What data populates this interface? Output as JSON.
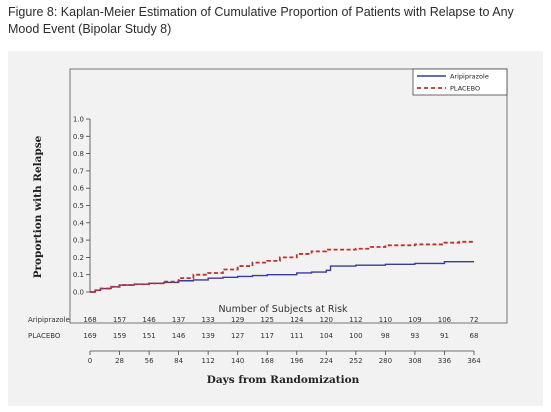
{
  "figure": {
    "title": "Figure 8: Kaplan-Meier Estimation of Cumulative Proportion of Patients with Relapse to Any Mood Event (Bipolar Study 8)"
  },
  "chart_data": {
    "type": "line",
    "title": "",
    "xlabel": "Days from Randomization",
    "ylabel": "Proportion with Relapse",
    "xlim": [
      0,
      364
    ],
    "ylim": [
      0,
      1.0
    ],
    "x_ticks": [
      0,
      28,
      56,
      84,
      112,
      140,
      168,
      196,
      224,
      252,
      280,
      308,
      336,
      364
    ],
    "y_ticks": [
      "0.0",
      "0.1",
      "0.2",
      "0.3",
      "0.4",
      "0.5",
      "0.6",
      "0.7",
      "0.8",
      "0.9",
      "1.0"
    ],
    "legend_position": "top-right",
    "series": [
      {
        "name": "Aripiprazole",
        "color": "#3b3b9a",
        "style": "solid",
        "points": [
          [
            0,
            0
          ],
          [
            5,
            0.01
          ],
          [
            10,
            0.02
          ],
          [
            20,
            0.03
          ],
          [
            28,
            0.04
          ],
          [
            42,
            0.045
          ],
          [
            56,
            0.05
          ],
          [
            70,
            0.055
          ],
          [
            84,
            0.065
          ],
          [
            98,
            0.07
          ],
          [
            112,
            0.08
          ],
          [
            126,
            0.085
          ],
          [
            140,
            0.09
          ],
          [
            154,
            0.095
          ],
          [
            168,
            0.1
          ],
          [
            196,
            0.11
          ],
          [
            210,
            0.115
          ],
          [
            224,
            0.125
          ],
          [
            228,
            0.15
          ],
          [
            252,
            0.155
          ],
          [
            280,
            0.16
          ],
          [
            308,
            0.165
          ],
          [
            336,
            0.175
          ],
          [
            364,
            0.175
          ]
        ]
      },
      {
        "name": "PLACEBO",
        "color": "#c0302a",
        "style": "dashed",
        "points": [
          [
            0,
            0
          ],
          [
            5,
            0.01
          ],
          [
            10,
            0.02
          ],
          [
            20,
            0.03
          ],
          [
            28,
            0.04
          ],
          [
            42,
            0.045
          ],
          [
            56,
            0.05
          ],
          [
            70,
            0.06
          ],
          [
            84,
            0.08
          ],
          [
            98,
            0.1
          ],
          [
            112,
            0.11
          ],
          [
            126,
            0.13
          ],
          [
            140,
            0.15
          ],
          [
            154,
            0.17
          ],
          [
            168,
            0.18
          ],
          [
            180,
            0.2
          ],
          [
            196,
            0.22
          ],
          [
            210,
            0.235
          ],
          [
            224,
            0.245
          ],
          [
            252,
            0.25
          ],
          [
            266,
            0.26
          ],
          [
            280,
            0.27
          ],
          [
            308,
            0.275
          ],
          [
            336,
            0.285
          ],
          [
            350,
            0.29
          ],
          [
            364,
            0.29
          ]
        ]
      }
    ],
    "at_risk": {
      "title": "Number of Subjects at Risk",
      "rows": [
        {
          "label": "Aripiprazole",
          "values": [
            "168",
            "157",
            "146",
            "137",
            "133",
            "129",
            "125",
            "124",
            "120",
            "112",
            "110",
            "109",
            "106",
            "72"
          ]
        },
        {
          "label": "PLACEBO",
          "values": [
            "169",
            "159",
            "151",
            "146",
            "139",
            "127",
            "117",
            "111",
            "104",
            "100",
            "98",
            "93",
            "91",
            "68"
          ]
        }
      ]
    }
  }
}
